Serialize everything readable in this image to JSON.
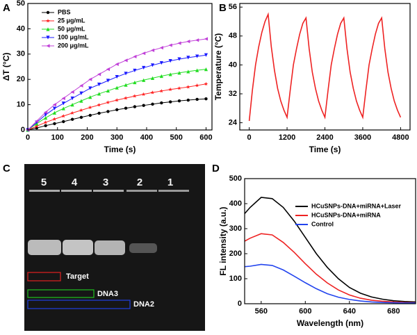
{
  "chart_data": [
    {
      "type": "line",
      "panel": "A",
      "x_label": "Time (s)",
      "y_label": "ΔT (°C)",
      "x": [
        0,
        30,
        60,
        90,
        120,
        150,
        180,
        210,
        240,
        270,
        300,
        330,
        360,
        390,
        420,
        450,
        480,
        510,
        540,
        570,
        600
      ],
      "xlim": [
        0,
        620
      ],
      "xticks": [
        0,
        100,
        200,
        300,
        400,
        500,
        600
      ],
      "ylim": [
        0,
        50
      ],
      "yticks": [
        0,
        10,
        20,
        30,
        40,
        50
      ],
      "legend": "upper left",
      "series": [
        {
          "name": "PBS",
          "color": "#000000",
          "marker": "circle",
          "values": [
            0,
            0.8,
            1.7,
            2.5,
            3.3,
            4.2,
            5,
            5.8,
            6.6,
            7.3,
            8,
            8.6,
            9.2,
            9.7,
            10.2,
            10.7,
            11.1,
            11.5,
            11.8,
            12.1,
            12.3
          ]
        },
        {
          "name": "25 μg/mL",
          "color": "#ff2020",
          "marker": "star",
          "values": [
            0,
            1.5,
            3,
            4.3,
            5.5,
            6.7,
            7.8,
            8.9,
            9.9,
            10.9,
            11.8,
            12.6,
            13.4,
            14.1,
            14.8,
            15.4,
            16,
            16.5,
            17,
            17.6,
            18.2
          ]
        },
        {
          "name": "50 μg/mL",
          "color": "#22dd22",
          "marker": "triangle-up",
          "values": [
            0,
            2.5,
            4.8,
            6.8,
            8.5,
            10,
            11.5,
            13,
            14.3,
            15.5,
            16.7,
            17.8,
            18.8,
            19.7,
            20.5,
            21.3,
            22,
            22.6,
            23.1,
            23.6,
            24
          ]
        },
        {
          "name": "100 μg/mL",
          "color": "#1a1aff",
          "marker": "triangle-down",
          "values": [
            0,
            3,
            6,
            8.5,
            10.5,
            12.5,
            14.5,
            16.5,
            18,
            19.5,
            21,
            22.3,
            23.5,
            24.6,
            25.6,
            26.5,
            27.3,
            28,
            28.6,
            29.1,
            29.6
          ]
        },
        {
          "name": "200 μg/mL",
          "color": "#c040d8",
          "marker": "triangle-left",
          "values": [
            0,
            3.5,
            7,
            10,
            12.5,
            15,
            17.5,
            20,
            22,
            24,
            26,
            27.5,
            29,
            30.3,
            31.5,
            32.5,
            33.5,
            34.3,
            35,
            35.5,
            36
          ]
        }
      ]
    },
    {
      "type": "line",
      "panel": "B",
      "x_label": "Time (s)",
      "y_label": "Temperature (°C)",
      "x": [
        0,
        100,
        200,
        300,
        400,
        500,
        600,
        700,
        800,
        900,
        1000,
        1100,
        1200,
        1300,
        1400,
        1500,
        1600,
        1700,
        1800,
        1900,
        2000,
        2100,
        2200,
        2300,
        2400,
        2500,
        2600,
        2700,
        2800,
        2900,
        3000,
        3100,
        3200,
        3300,
        3400,
        3500,
        3600,
        3700,
        3800,
        3900,
        4000,
        4100,
        4200,
        4300,
        4400,
        4500,
        4600,
        4700,
        4800
      ],
      "xlim": [
        -300,
        5100
      ],
      "xticks": [
        0,
        1200,
        2400,
        3600,
        4800
      ],
      "ylim": [
        22,
        57
      ],
      "yticks": [
        24,
        32,
        40,
        48,
        56
      ],
      "series": [
        {
          "color": "#ee2222",
          "values": [
            24.5,
            33,
            40,
            45,
            49,
            52,
            54,
            45,
            38.5,
            33.5,
            30,
            27.5,
            25.5,
            33,
            40,
            44.5,
            48.5,
            51.5,
            53,
            44.5,
            38,
            33.5,
            30,
            27.5,
            25.5,
            33,
            40,
            44.5,
            48.5,
            51.5,
            53,
            44.5,
            38,
            33.5,
            30,
            27.5,
            25.5,
            33,
            40,
            44.5,
            48.5,
            51.5,
            53,
            44.5,
            38,
            33.5,
            30,
            27.5,
            25.5
          ]
        }
      ]
    },
    {
      "type": "line",
      "panel": "D",
      "x_label": "Wavelength (nm)",
      "y_label": "FL intensity (a.u.)",
      "x": [
        545,
        550,
        560,
        570,
        580,
        590,
        600,
        610,
        620,
        630,
        640,
        650,
        660,
        670,
        680,
        690,
        700
      ],
      "xlim": [
        545,
        700
      ],
      "xticks": [
        560,
        600,
        640,
        680
      ],
      "ylim": [
        0,
        500
      ],
      "yticks": [
        0,
        100,
        200,
        300,
        400,
        500
      ],
      "legend": "upper right",
      "series": [
        {
          "name": "HCuSNPs-DNA+miRNA+Laser",
          "color": "#000000",
          "values": [
            360,
            385,
            425,
            420,
            385,
            330,
            265,
            200,
            145,
            100,
            65,
            42,
            27,
            18,
            12,
            9,
            7
          ]
        },
        {
          "name": "HCuSNPs-DNA+miRNA",
          "color": "#ee2222",
          "values": [
            250,
            262,
            280,
            275,
            245,
            205,
            160,
            118,
            83,
            55,
            35,
            22,
            14,
            10,
            7,
            5,
            4
          ]
        },
        {
          "name": "Control",
          "color": "#2244ee",
          "values": [
            148,
            150,
            157,
            153,
            135,
            110,
            84,
            60,
            40,
            26,
            17,
            11,
            7,
            5,
            4,
            3,
            3
          ]
        }
      ]
    }
  ],
  "gel": {
    "panel": "C",
    "lanes": [
      "5",
      "4",
      "3",
      "2",
      "1"
    ],
    "boxes": [
      "Target",
      "DNA3",
      "DNA2"
    ]
  }
}
